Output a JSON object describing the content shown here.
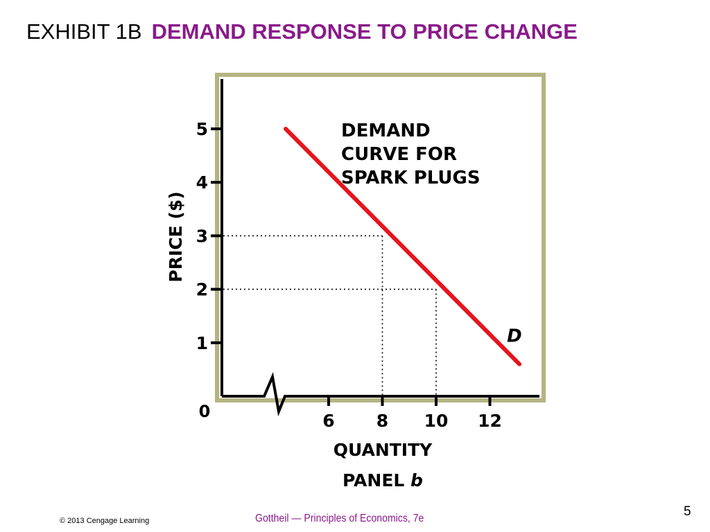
{
  "slide": {
    "title_prefix": "EXHIBIT 1B",
    "title_main": "DEMAND RESPONSE TO PRICE CHANGE",
    "copyright": "© 2013 Cengage Learning",
    "book": "Gottheil — Principles of Economics, 7e",
    "page_number": "5"
  },
  "colors": {
    "title_accent": "#8a1a8a",
    "demand_line": "#e8141c",
    "frame_border": "#b5b483"
  },
  "chart_data": {
    "type": "line",
    "title": "",
    "panel_label_prefix": "PANEL ",
    "panel_label_letter": "b",
    "annotation_lines": [
      "DEMAND",
      "CURVE FOR",
      "SPARK PLUGS"
    ],
    "xlabel": "QUANTITY",
    "ylabel": "PRICE ($)",
    "origin_label": "0",
    "x_ticks": [
      6,
      8,
      10,
      12
    ],
    "y_ticks": [
      1,
      2,
      3,
      4,
      5
    ],
    "x_axis_break": true,
    "series": [
      {
        "name": "D",
        "x": [
          4.4,
          13.1
        ],
        "y": [
          5,
          0.6
        ]
      }
    ],
    "reference_points": [
      {
        "x": 8,
        "y": 3
      },
      {
        "x": 10,
        "y": 2
      }
    ],
    "grid": false
  }
}
